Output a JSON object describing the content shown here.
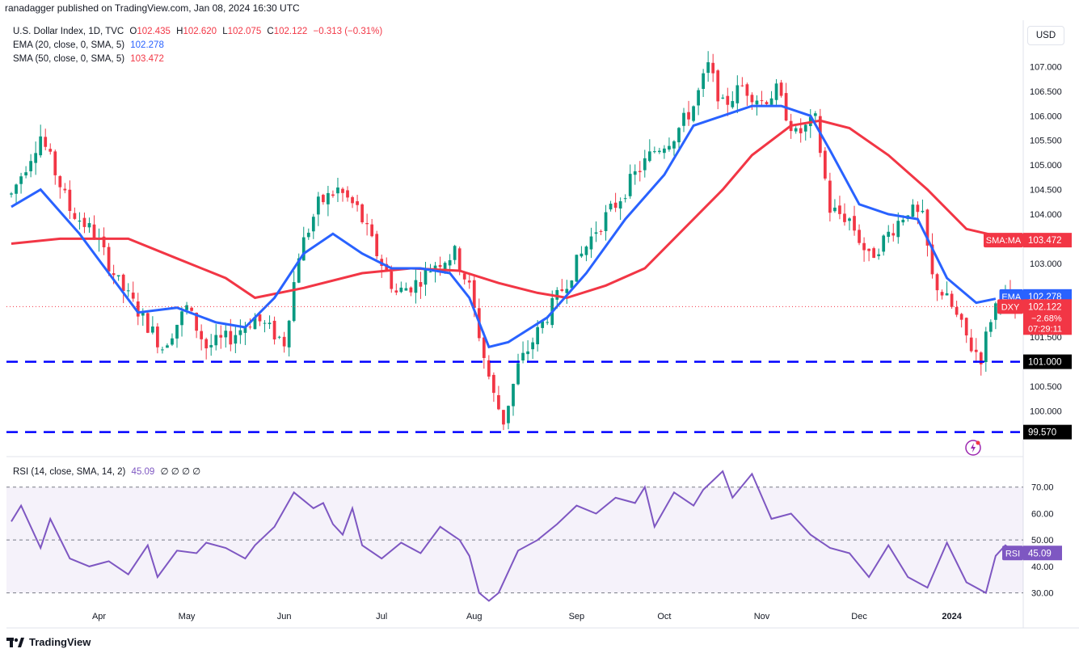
{
  "header": {
    "publisher": "ranadagger published on TradingView.com, Jan 08, 2024 16:30 UTC"
  },
  "ohlc": {
    "symbol": "U.S. Dollar Index, 1D, TVC",
    "o_label": "O",
    "o": "102.435",
    "h_label": "H",
    "h": "102.620",
    "l_label": "L",
    "l": "102.075",
    "c_label": "C",
    "c": "102.122",
    "change": "−0.313 (−0.31%)"
  },
  "indicators": {
    "ema_label": "EMA (20, close, 0, SMA, 5)",
    "ema_value": "102.278",
    "sma_label": "SMA (50, close, 0, SMA, 5)",
    "sma_value": "103.472",
    "rsi_label": "RSI (14, close, SMA, 14, 2)",
    "rsi_value": "45.09",
    "rsi_extra": "∅ ∅ ∅ ∅"
  },
  "currency_button": "USD",
  "price_axis": [
    "107.000",
    "106.500",
    "106.000",
    "105.500",
    "105.000",
    "104.500",
    "104.000",
    "103.000",
    "101.500",
    "100.500",
    "100.000"
  ],
  "rsi_axis": [
    "70.00",
    "60.00",
    "50.00",
    "40.00",
    "30.00"
  ],
  "time_axis": [
    "Apr",
    "May",
    "Jun",
    "Jul",
    "Aug",
    "Sep",
    "Oct",
    "Nov",
    "Dec",
    "2024"
  ],
  "tags": {
    "sma": {
      "name": "SMA:MA",
      "value": "103.472"
    },
    "ema": {
      "name": "EMA",
      "value": "102.278"
    },
    "dxy": {
      "name": "DXY",
      "value": "102.122",
      "change": "−2.68%",
      "countdown": "07:29:11"
    },
    "rsi": {
      "name": "RSI",
      "value": "45.09"
    },
    "level1": "101.000",
    "level2": "99.570"
  },
  "footer": {
    "brand": "TradingView"
  },
  "colors": {
    "up": "#089981",
    "down": "#f23645",
    "ema": "#2962ff",
    "sma": "#f23645",
    "rsi": "#7e57c2",
    "level": "#0000ff"
  },
  "chart_data": {
    "type": "candlestick",
    "title": "U.S. Dollar Index, 1D, TVC",
    "ylim": [
      99.57,
      107.45
    ],
    "horizontal_levels": [
      101.0,
      99.57
    ],
    "price_path": [
      [
        0,
        104.4
      ],
      [
        6,
        105.6
      ],
      [
        12,
        104.1
      ],
      [
        17,
        103.6
      ],
      [
        22,
        102.6
      ],
      [
        27,
        101.9
      ],
      [
        31,
        101.3
      ],
      [
        36,
        102.1
      ],
      [
        40,
        101.3
      ],
      [
        45,
        101.5
      ],
      [
        50,
        101.9
      ],
      [
        56,
        101.4
      ],
      [
        59,
        103.2
      ],
      [
        63,
        104.2
      ],
      [
        67,
        104.5
      ],
      [
        71,
        104.1
      ],
      [
        75,
        103.2
      ],
      [
        79,
        102.4
      ],
      [
        83,
        102.6
      ],
      [
        87,
        103.0
      ],
      [
        91,
        103.2
      ],
      [
        94,
        102.5
      ],
      [
        97,
        101.1
      ],
      [
        99,
        100.3
      ],
      [
        101,
        99.8
      ],
      [
        104,
        100.9
      ],
      [
        108,
        101.6
      ],
      [
        112,
        102.3
      ],
      [
        116,
        103.0
      ],
      [
        120,
        103.7
      ],
      [
        124,
        104.2
      ],
      [
        128,
        104.8
      ],
      [
        132,
        105.3
      ],
      [
        136,
        105.6
      ],
      [
        140,
        106.2
      ],
      [
        143,
        107.0
      ],
      [
        146,
        106.2
      ],
      [
        150,
        106.6
      ],
      [
        154,
        106.3
      ],
      [
        157,
        106.5
      ],
      [
        161,
        105.6
      ],
      [
        165,
        105.9
      ],
      [
        168,
        104.1
      ],
      [
        172,
        103.9
      ],
      [
        176,
        103.1
      ],
      [
        180,
        103.6
      ],
      [
        184,
        104.1
      ],
      [
        187,
        103.9
      ],
      [
        189,
        102.7
      ],
      [
        193,
        102.1
      ],
      [
        197,
        101.3
      ],
      [
        199,
        101.1
      ],
      [
        201,
        101.9
      ],
      [
        203,
        102.4
      ],
      [
        206,
        102.12
      ]
    ],
    "ema20_path": [
      [
        0,
        104.15
      ],
      [
        6,
        104.5
      ],
      [
        14,
        103.6
      ],
      [
        20,
        102.8
      ],
      [
        26,
        102.0
      ],
      [
        34,
        102.1
      ],
      [
        42,
        101.8
      ],
      [
        48,
        101.7
      ],
      [
        54,
        102.3
      ],
      [
        60,
        103.2
      ],
      [
        66,
        103.6
      ],
      [
        72,
        103.2
      ],
      [
        78,
        102.9
      ],
      [
        84,
        102.9
      ],
      [
        90,
        102.8
      ],
      [
        94,
        102.3
      ],
      [
        98,
        101.3
      ],
      [
        102,
        101.4
      ],
      [
        110,
        101.9
      ],
      [
        118,
        102.8
      ],
      [
        126,
        103.9
      ],
      [
        134,
        104.8
      ],
      [
        140,
        105.8
      ],
      [
        146,
        106.0
      ],
      [
        152,
        106.2
      ],
      [
        158,
        106.2
      ],
      [
        164,
        106.0
      ],
      [
        168,
        105.3
      ],
      [
        174,
        104.2
      ],
      [
        180,
        104.0
      ],
      [
        186,
        103.9
      ],
      [
        192,
        102.7
      ],
      [
        198,
        102.2
      ],
      [
        202,
        102.28
      ]
    ],
    "sma50_path": [
      [
        0,
        103.4
      ],
      [
        10,
        103.5
      ],
      [
        24,
        103.5
      ],
      [
        34,
        103.1
      ],
      [
        44,
        102.7
      ],
      [
        50,
        102.3
      ],
      [
        60,
        102.5
      ],
      [
        72,
        102.8
      ],
      [
        82,
        102.9
      ],
      [
        92,
        102.85
      ],
      [
        100,
        102.6
      ],
      [
        108,
        102.4
      ],
      [
        114,
        102.3
      ],
      [
        122,
        102.55
      ],
      [
        130,
        102.9
      ],
      [
        138,
        103.7
      ],
      [
        146,
        104.5
      ],
      [
        152,
        105.2
      ],
      [
        160,
        105.8
      ],
      [
        166,
        105.9
      ],
      [
        172,
        105.75
      ],
      [
        180,
        105.2
      ],
      [
        188,
        104.5
      ],
      [
        196,
        103.7
      ],
      [
        206,
        103.47
      ]
    ],
    "rsi_path": [
      [
        0,
        57
      ],
      [
        2,
        63
      ],
      [
        6,
        47
      ],
      [
        8,
        58
      ],
      [
        12,
        43
      ],
      [
        16,
        40
      ],
      [
        20,
        42
      ],
      [
        24,
        37
      ],
      [
        28,
        48
      ],
      [
        30,
        36
      ],
      [
        34,
        46
      ],
      [
        38,
        45
      ],
      [
        40,
        49
      ],
      [
        44,
        47
      ],
      [
        48,
        43
      ],
      [
        50,
        48
      ],
      [
        54,
        55
      ],
      [
        58,
        68
      ],
      [
        62,
        62
      ],
      [
        64,
        64
      ],
      [
        66,
        56
      ],
      [
        68,
        52
      ],
      [
        70,
        62
      ],
      [
        72,
        48
      ],
      [
        76,
        43
      ],
      [
        80,
        49
      ],
      [
        84,
        45
      ],
      [
        88,
        55
      ],
      [
        92,
        50
      ],
      [
        94,
        44
      ],
      [
        96,
        30
      ],
      [
        98,
        27
      ],
      [
        100,
        30
      ],
      [
        104,
        46
      ],
      [
        108,
        50
      ],
      [
        112,
        56
      ],
      [
        116,
        63
      ],
      [
        120,
        60
      ],
      [
        124,
        66
      ],
      [
        128,
        64
      ],
      [
        130,
        70
      ],
      [
        132,
        55
      ],
      [
        136,
        68
      ],
      [
        140,
        63
      ],
      [
        142,
        69
      ],
      [
        146,
        76
      ],
      [
        148,
        66
      ],
      [
        152,
        75
      ],
      [
        156,
        58
      ],
      [
        160,
        60
      ],
      [
        164,
        52
      ],
      [
        168,
        47
      ],
      [
        172,
        45
      ],
      [
        176,
        36
      ],
      [
        180,
        48
      ],
      [
        184,
        36
      ],
      [
        188,
        32
      ],
      [
        192,
        49
      ],
      [
        196,
        34
      ],
      [
        200,
        30
      ],
      [
        202,
        44
      ],
      [
        204,
        48
      ],
      [
        206,
        45.09
      ]
    ],
    "rsi_ylim": [
      25,
      77
    ],
    "rsi_band": [
      30,
      70
    ],
    "x_ticks": [
      {
        "label": "Apr",
        "i": 18
      },
      {
        "label": "May",
        "i": 36
      },
      {
        "label": "Jun",
        "i": 56
      },
      {
        "label": "Jul",
        "i": 76
      },
      {
        "label": "Aug",
        "i": 95
      },
      {
        "label": "Sep",
        "i": 116
      },
      {
        "label": "Oct",
        "i": 134
      },
      {
        "label": "Nov",
        "i": 154
      },
      {
        "label": "Dec",
        "i": 174
      },
      {
        "label": "2024",
        "i": 193
      }
    ]
  }
}
